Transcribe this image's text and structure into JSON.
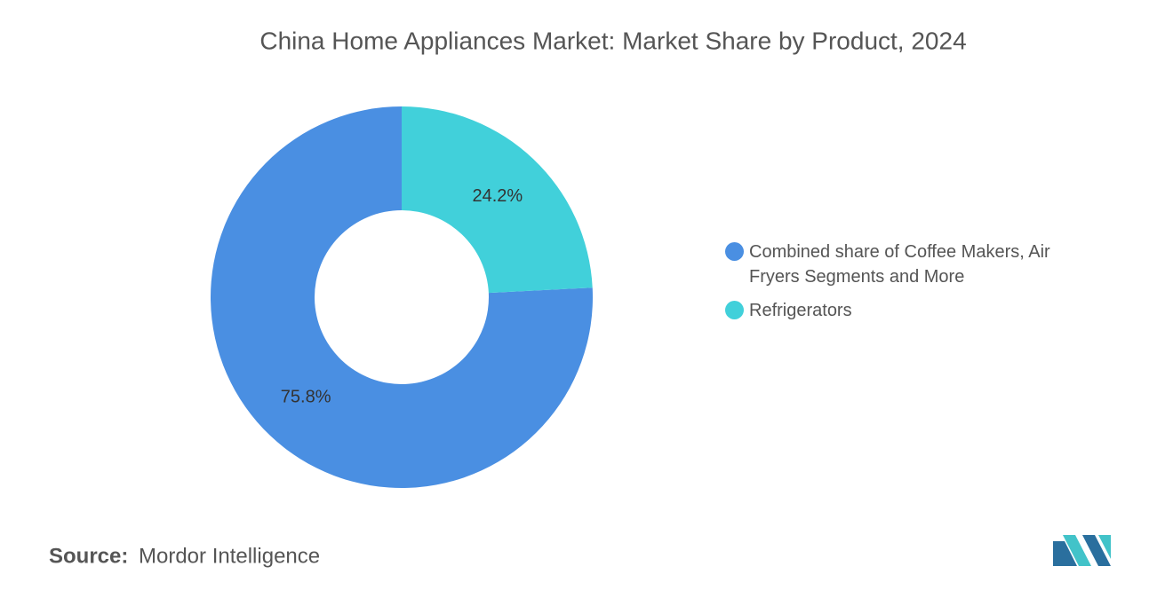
{
  "chart_data": {
    "type": "pie",
    "title": "China Home Appliances Market: Market Share by Product, 2024",
    "categories": [
      "Combined share of Coffee Makers, Air Fryers Segments and More",
      "Refrigerators"
    ],
    "values": [
      75.8,
      24.2
    ],
    "value_labels": [
      "75.8%",
      "24.2%"
    ],
    "colors": [
      "#4a8fe2",
      "#41d0da"
    ],
    "legend": "right"
  },
  "source": {
    "label": "Source:",
    "name": "Mordor Intelligence"
  }
}
